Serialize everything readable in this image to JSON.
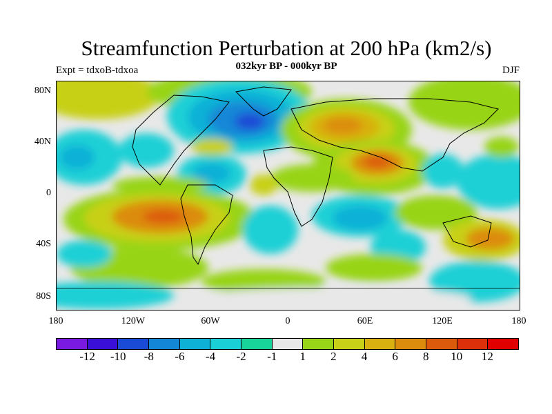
{
  "title": "Streamfunction Perturbation at 200 hPa (km2/s)",
  "subtitle": "032kyr BP - 000kyr BP",
  "left_label": "Expt = tdxoB-tdxoa",
  "right_label": "DJF",
  "y_axis_labels": [
    "80N",
    "40N",
    "0",
    "40S",
    "80S"
  ],
  "x_axis_labels": [
    "180",
    "120W",
    "60W",
    "0",
    "60E",
    "120E",
    "180"
  ],
  "colorbar": {
    "colors": [
      "#7a1ae0",
      "#3a10d8",
      "#1a4bd6",
      "#1486d6",
      "#0fb0d6",
      "#1ad0d6",
      "#18d49a",
      "#e8e8e8",
      "#98d418",
      "#c8d018",
      "#d8b010",
      "#dc8c0c",
      "#dc5a0c",
      "#dc300a",
      "#e00000"
    ],
    "labels": [
      "-12",
      "-10",
      "-8",
      "-6",
      "-4",
      "-2",
      "-1",
      "1",
      "2",
      "4",
      "6",
      "8",
      "10",
      "12"
    ]
  }
}
